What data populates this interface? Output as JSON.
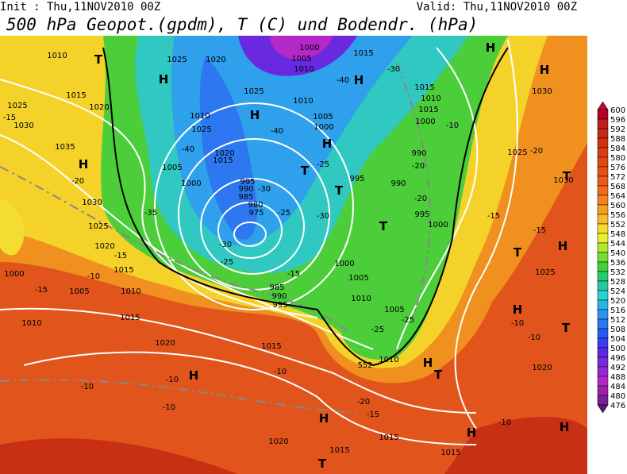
{
  "header": {
    "init": "Init : Thu,11NOV2010 00Z",
    "valid": "Valid: Thu,11NOV2010 00Z",
    "title": "500 hPa Geopot.(gpdm), T (C) und Bodendr. (hPa)"
  },
  "colorbar": {
    "levels": [
      600,
      596,
      592,
      588,
      584,
      580,
      576,
      572,
      568,
      564,
      560,
      556,
      552,
      548,
      544,
      540,
      536,
      532,
      528,
      524,
      520,
      516,
      512,
      508,
      504,
      500,
      496,
      492,
      488,
      484,
      480,
      476
    ],
    "colors": [
      "#c8003c",
      "#b4002a",
      "#be1e1e",
      "#c82814",
      "#d2320f",
      "#dc3c0f",
      "#e14614",
      "#e65014",
      "#eb5a19",
      "#f06e19",
      "#f5821e",
      "#f5a023",
      "#f5be28",
      "#f5dc32",
      "#e6f032",
      "#b4e632",
      "#78dc32",
      "#3cd23c",
      "#28c86e",
      "#28c8a0",
      "#28d2d2",
      "#28b4e6",
      "#2896f0",
      "#2878f0",
      "#285af0",
      "#3c3cf0",
      "#5a28e6",
      "#7828dc",
      "#9628d2",
      "#b428c8",
      "#a01eaa",
      "#781e96",
      "#5a1478"
    ]
  },
  "map": {
    "labels": [
      "1010",
      "T",
      "1025",
      "1020",
      "1000",
      "1005",
      "1010",
      "1015",
      "H",
      "H",
      "1015",
      "1020",
      "1025",
      "-15",
      "1030",
      "1025",
      "H",
      "1010",
      "-40",
      "H",
      "-30",
      "1015",
      "1010",
      "1015",
      "1005",
      "1000",
      "1010",
      "1025",
      "-40",
      "H",
      "1000",
      "-10",
      "H",
      "1030",
      "1035",
      "H",
      "-40",
      "1020",
      "1015",
      "1005",
      "T",
      "-25",
      "990",
      "-20",
      "995",
      "990",
      "T",
      "1000",
      "995",
      "990",
      "985",
      "-30",
      "-25",
      "-30",
      "-20",
      "995",
      "1030",
      "-20",
      "1025",
      "-35",
      "980",
      "975",
      "T",
      "1000",
      "-15",
      "1025",
      "-20",
      "T",
      "1030",
      "1020",
      "-15",
      "1015",
      "-10",
      "1000",
      "-15",
      "1005",
      "1010",
      "-30",
      "-25",
      "-15",
      "1000",
      "1005",
      "985",
      "990",
      "995",
      "1010",
      "1005",
      "-25",
      "-25",
      "-15",
      "T",
      "H",
      "1025",
      "H",
      "-10",
      "T",
      "-10",
      "1010",
      "1015",
      "1020",
      "1015",
      "552",
      "1010",
      "H",
      "-10",
      "T",
      "-10",
      "-10",
      "H",
      "1020",
      "-20",
      "-15",
      "H",
      "-10",
      "-10",
      "H",
      "1020",
      "1015",
      "1015",
      "1015",
      "T",
      "H"
    ]
  }
}
